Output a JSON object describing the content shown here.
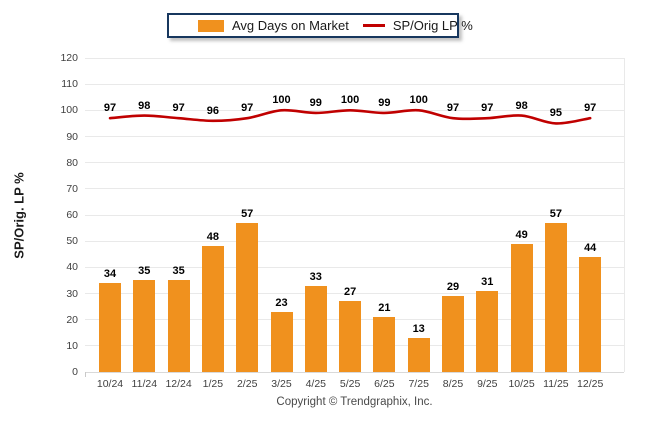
{
  "chart_data": {
    "type": "bar",
    "subtype": "bar-line-combo",
    "categories": [
      "10/24",
      "11/24",
      "12/24",
      "1/25",
      "2/25",
      "3/25",
      "4/25",
      "5/25",
      "6/25",
      "7/25",
      "8/25",
      "9/25",
      "10/25",
      "11/25",
      "12/25"
    ],
    "series": [
      {
        "name": "Avg Days on Market",
        "type": "bar",
        "color": "#F0911E",
        "values": [
          34,
          35,
          35,
          48,
          57,
          23,
          33,
          27,
          21,
          13,
          29,
          31,
          49,
          57,
          44
        ]
      },
      {
        "name": "SP/Orig LP %",
        "type": "line",
        "color": "#C00000",
        "values": [
          97,
          98,
          97,
          96,
          97,
          100,
          99,
          100,
          99,
          100,
          97,
          97,
          98,
          95,
          97
        ]
      }
    ],
    "title": "",
    "xlabel": "",
    "ylabel": "SP/Orig. LP %",
    "ylim": [
      0,
      120
    ],
    "ytick_step": 10,
    "ytick_labels": [
      "0",
      "10",
      "20",
      "30",
      "40",
      "50",
      "60",
      "70",
      "80",
      "90",
      "100",
      "110",
      "120"
    ],
    "grid": "horizontal",
    "legend_position": "top-center",
    "data_labels": true
  },
  "legend": {
    "items": [
      {
        "label": "Avg Days on Market",
        "swatch": "bar",
        "color": "#F0911E"
      },
      {
        "label": "SP/Orig LP %",
        "swatch": "line",
        "color": "#C00000"
      }
    ]
  },
  "footer": {
    "copyright": "Copyright © Trendgraphix, Inc."
  },
  "colors": {
    "bar": "#F0911E",
    "line": "#C00000",
    "legend_border": "#17375E",
    "gridline": "#e9e9e9",
    "tick_text": "#3f3f3f",
    "data_label": "#000000",
    "background": "#ffffff"
  }
}
